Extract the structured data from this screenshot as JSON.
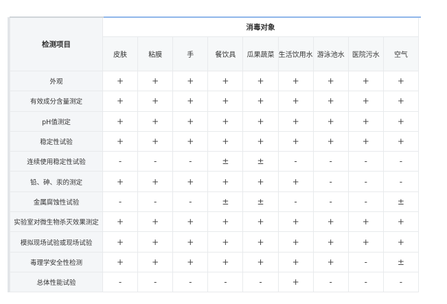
{
  "table": {
    "row_header": "检测项目",
    "group_header": "消毒对象",
    "columns": [
      "皮肤",
      "粘膜",
      "手",
      "餐饮具",
      "瓜果蔬菜",
      "生活饮用水",
      "游泳池水",
      "医院污水",
      "空气"
    ],
    "rows": [
      {
        "name": "外观",
        "values": [
          "+",
          "+",
          "+",
          "+",
          "+",
          "+",
          "+",
          "+",
          "+"
        ]
      },
      {
        "name": "有效成分含量测定",
        "values": [
          "+",
          "+",
          "+",
          "+",
          "+",
          "+",
          "+",
          "+",
          "+"
        ]
      },
      {
        "name": "pH值测定",
        "values": [
          "+",
          "+",
          "+",
          "+",
          "+",
          "+",
          "+",
          "+",
          "+"
        ]
      },
      {
        "name": "稳定性试验",
        "values": [
          "+",
          "+",
          "+",
          "+",
          "+",
          "+",
          "+",
          "+",
          "+"
        ]
      },
      {
        "name": "连续使用稳定性试验",
        "values": [
          "-",
          "-",
          "-",
          "±",
          "±",
          "-",
          "-",
          "-",
          "-"
        ]
      },
      {
        "name": "铅、砷、汞的测定",
        "values": [
          "+",
          "+",
          "+",
          "+",
          "+",
          "+",
          "-",
          "-",
          "-"
        ]
      },
      {
        "name": "金属腐蚀性试验",
        "values": [
          "-",
          "-",
          "-",
          "±",
          "±",
          "-",
          "-",
          "-",
          "±"
        ]
      },
      {
        "name": "实验室对微生物杀灭效果测定",
        "values": [
          "+",
          "+",
          "+",
          "+",
          "+",
          "+",
          "+",
          "+",
          "+"
        ]
      },
      {
        "name": "模拟现场试验或现场试验",
        "values": [
          "+",
          "+",
          "+",
          "+",
          "+",
          "+",
          "+",
          "+",
          "+"
        ]
      },
      {
        "name": "毒理学安全性检测",
        "values": [
          "+",
          "+",
          "+",
          "+",
          "+",
          "+",
          "+",
          "-",
          "±"
        ]
      },
      {
        "name": "总体性能试验",
        "values": [
          "-",
          "-",
          "-",
          "-",
          "-",
          "+",
          "-",
          "-",
          "-"
        ]
      }
    ]
  }
}
